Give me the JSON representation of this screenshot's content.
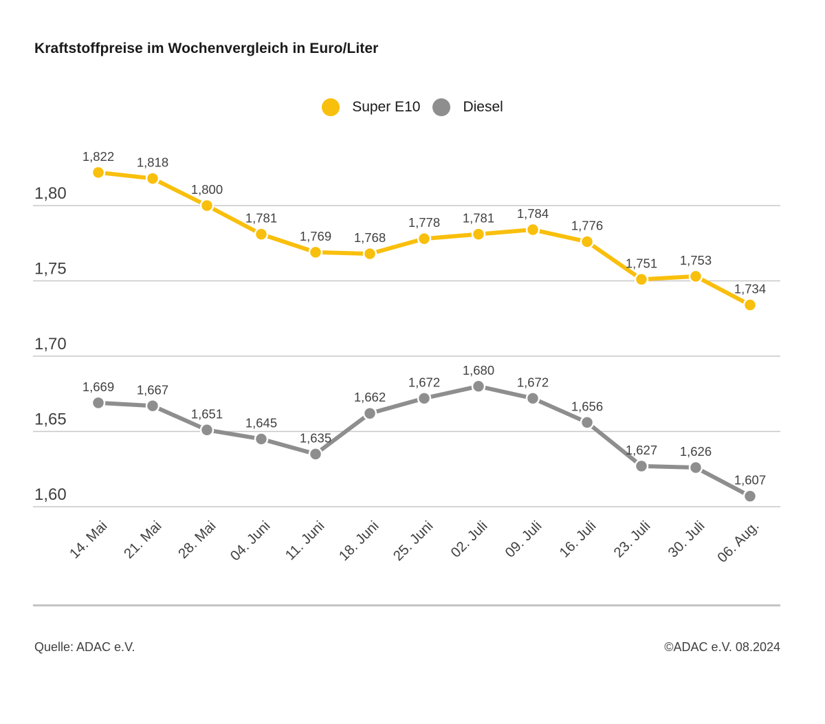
{
  "title": "Kraftstoffpreise im Wochenvergleich in Euro/Liter",
  "legend": {
    "items": [
      {
        "label": "Super E10",
        "color": "#f9bf0d"
      },
      {
        "label": "Diesel",
        "color": "#8e8e8e"
      }
    ]
  },
  "chart_data": {
    "type": "line",
    "title": "Kraftstoffpreise im Wochenvergleich in Euro/Liter",
    "unit": "Euro/Liter",
    "categories": [
      "14. Mai",
      "21. Mai",
      "28. Mai",
      "04. Juni",
      "11. Juni",
      "18. Juni",
      "25. Juni",
      "02. Juli",
      "09. Juli",
      "16. Juli",
      "23. Juli",
      "30. Juli",
      "06. Aug."
    ],
    "series": [
      {
        "name": "Super E10",
        "color": "#f9bf0d",
        "values": [
          1.822,
          1.818,
          1.8,
          1.781,
          1.769,
          1.768,
          1.778,
          1.781,
          1.784,
          1.776,
          1.751,
          1.753,
          1.734
        ]
      },
      {
        "name": "Diesel",
        "color": "#8e8e8e",
        "values": [
          1.669,
          1.667,
          1.651,
          1.645,
          1.635,
          1.662,
          1.672,
          1.68,
          1.672,
          1.656,
          1.627,
          1.626,
          1.607
        ]
      }
    ],
    "y_ticks": [
      {
        "value": 1.8,
        "label": "1,80"
      },
      {
        "value": 1.75,
        "label": "1,75"
      },
      {
        "value": 1.7,
        "label": "1,70"
      },
      {
        "value": 1.65,
        "label": "1,65"
      },
      {
        "value": 1.6,
        "label": "1,60"
      }
    ],
    "ylim": [
      1.6,
      1.85
    ],
    "grid": true,
    "legend_position": "top",
    "value_labels": true,
    "decimal_separator": ",",
    "colors": {
      "gridline": "#c7c7c7",
      "axis_text": "#3f3f3f",
      "value_label_text": "#414141"
    }
  },
  "footer": {
    "source": "Quelle: ADAC e.V.",
    "copyright": "©ADAC e.V. 08.2024"
  }
}
